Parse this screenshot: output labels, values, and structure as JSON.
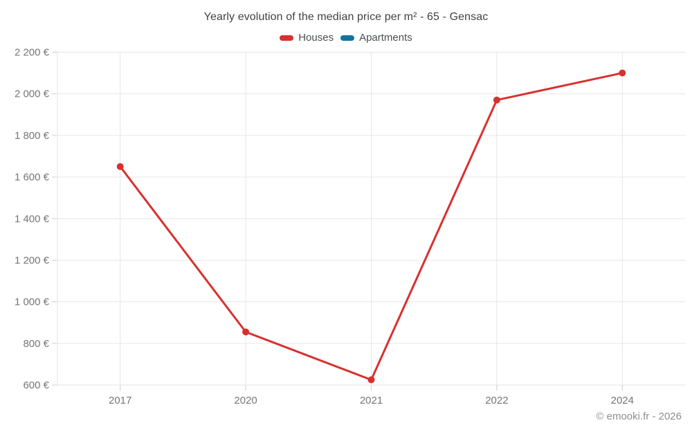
{
  "chart_data": {
    "type": "line",
    "title": "Yearly evolution of the median price per m² - 65 - Gensac",
    "categories": [
      "2017",
      "2020",
      "2021",
      "2022",
      "2024"
    ],
    "series": [
      {
        "name": "Houses",
        "color": "#d8302f",
        "values": [
          1650,
          855,
          625,
          1970,
          2100
        ]
      },
      {
        "name": "Apartments",
        "color": "#1273a3",
        "values": []
      }
    ],
    "xlabel": "",
    "ylabel": "",
    "ylim": [
      600,
      2200
    ],
    "ytick_step": 200,
    "ytick_labels": [
      "600 €",
      "800 €",
      "1 000 €",
      "1 200 €",
      "1 400 €",
      "1 600 €",
      "1 800 €",
      "2 000 €",
      "2 200 €"
    ],
    "grid": true,
    "legend_position": "top-center",
    "marker": "circle",
    "footer": "© emooki.fr - 2026",
    "colors": {
      "grid": "#e6e6e6",
      "tick": "#cccccc",
      "axis_text": "#757575",
      "title_text": "#3f4245",
      "legend_text": "#4a4d50",
      "footer_text": "#8b8e91",
      "background": "#ffffff"
    }
  }
}
